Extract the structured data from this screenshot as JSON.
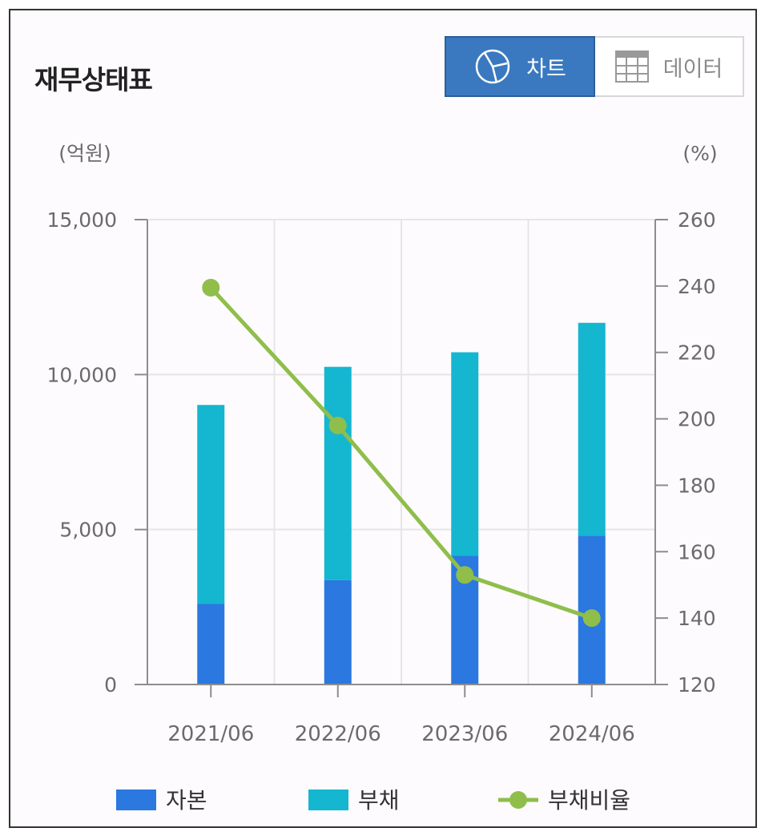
{
  "header": {
    "title": "재무상태표",
    "chart_label": "차트",
    "data_label": "데이터"
  },
  "colors": {
    "capital": "#2a78e0",
    "debt": "#15b6d0",
    "ratio": "#8fbe4b",
    "toggle_active": "#3a79c0"
  },
  "chart_data": {
    "type": "bar",
    "stacked": true,
    "categories": [
      "2021/06",
      "2022/06",
      "2023/06",
      "2024/06"
    ],
    "series": [
      {
        "name": "자본",
        "type": "bar",
        "axis": "left",
        "values": [
          2600,
          3370,
          4150,
          4800
        ]
      },
      {
        "name": "부채",
        "type": "bar",
        "axis": "left",
        "values": [
          6420,
          6880,
          6570,
          6870
        ]
      },
      {
        "name": "부채비율",
        "type": "line",
        "axis": "right",
        "values": [
          239.5,
          198,
          153,
          140
        ]
      }
    ],
    "ylabel_left": "(억원)",
    "ylabel_right": "(%)",
    "ylim_left": [
      0,
      15000
    ],
    "ylim_right": [
      120,
      260
    ],
    "yticks_left": [
      "0",
      "5,000",
      "10,000",
      "15,000"
    ],
    "yticks_right": [
      "120",
      "140",
      "160",
      "180",
      "200",
      "220",
      "240",
      "260"
    ],
    "grid": true,
    "legend_position": "bottom"
  }
}
